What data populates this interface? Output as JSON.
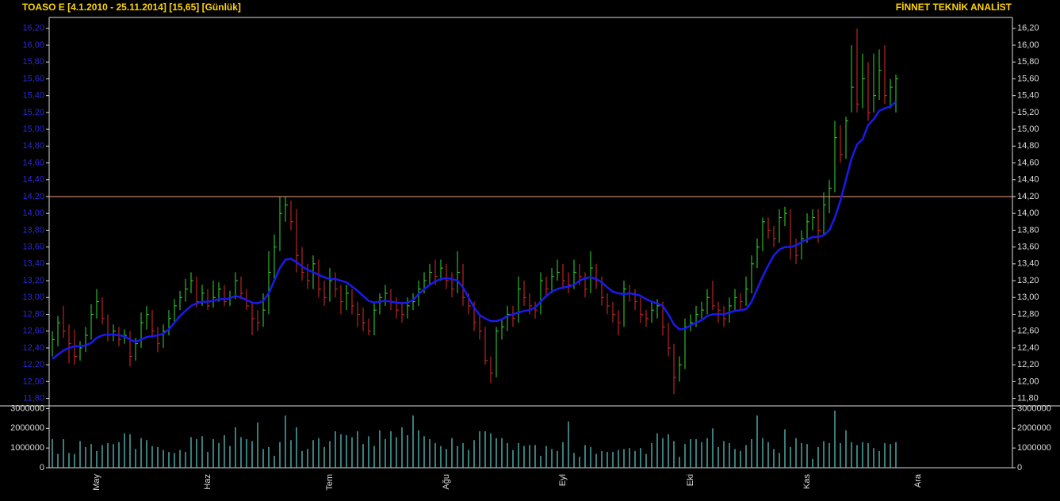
{
  "chart_data": [
    {
      "type": "hlc",
      "title": "TOASO E  [4.1.2010 - 25.11.2014]  [15,65]  [Günlük]",
      "brand": "FİNNET TEKNİK ANALİST",
      "up_color": "#33dd33",
      "down_color": "#dd2a2a",
      "hline": 14.2,
      "hline_color": "#f0a080",
      "ylim": [
        11.73,
        16.33
      ],
      "yticks": [
        {
          "value": 11.8,
          "label": "11,80"
        },
        {
          "value": 12,
          "label": "12,00"
        },
        {
          "value": 12.2,
          "label": "12,20"
        },
        {
          "value": 12.4,
          "label": "12,40"
        },
        {
          "value": 12.6,
          "label": "12,60"
        },
        {
          "value": 12.8,
          "label": "12,80"
        },
        {
          "value": 13,
          "label": "13,00"
        },
        {
          "value": 13.2,
          "label": "13,20"
        },
        {
          "value": 13.4,
          "label": "13,40"
        },
        {
          "value": 13.6,
          "label": "13,60"
        },
        {
          "value": 13.8,
          "label": "13,80"
        },
        {
          "value": 14,
          "label": "14,00"
        },
        {
          "value": 14.2,
          "label": "14,20"
        },
        {
          "value": 14.4,
          "label": "14,40"
        },
        {
          "value": 14.6,
          "label": "14,60"
        },
        {
          "value": 14.8,
          "label": "14,80"
        },
        {
          "value": 15,
          "label": "15,00"
        },
        {
          "value": 15.2,
          "label": "15,20"
        },
        {
          "value": 15.4,
          "label": "15,40"
        },
        {
          "value": 15.6,
          "label": "15,60"
        },
        {
          "value": 15.8,
          "label": "15,80"
        },
        {
          "value": 16,
          "label": "16,00"
        },
        {
          "value": 16.2,
          "label": "16,20"
        }
      ],
      "categories": [
        null,
        null,
        null,
        null,
        null,
        null,
        null,
        null,
        "May",
        null,
        null,
        null,
        null,
        null,
        null,
        null,
        null,
        null,
        null,
        null,
        null,
        null,
        null,
        null,
        null,
        null,
        null,
        null,
        "Haz",
        null,
        null,
        null,
        null,
        null,
        null,
        null,
        null,
        null,
        null,
        null,
        null,
        null,
        null,
        null,
        null,
        null,
        null,
        null,
        null,
        null,
        "Tem",
        null,
        null,
        null,
        null,
        null,
        null,
        null,
        null,
        null,
        null,
        null,
        null,
        null,
        null,
        null,
        null,
        null,
        null,
        null,
        null,
        "Ağu",
        null,
        null,
        null,
        null,
        null,
        null,
        null,
        null,
        null,
        null,
        null,
        null,
        null,
        null,
        null,
        null,
        null,
        null,
        null,
        null,
        "Eyl",
        null,
        null,
        null,
        null,
        null,
        null,
        null,
        null,
        null,
        null,
        null,
        null,
        null,
        null,
        null,
        null,
        null,
        null,
        null,
        null,
        null,
        null,
        "Eki",
        null,
        null,
        null,
        null,
        null,
        null,
        null,
        null,
        null,
        null,
        null,
        null,
        null,
        null,
        null,
        null,
        null,
        null,
        null,
        null,
        "Kas",
        null,
        null,
        null,
        null,
        null,
        null,
        null,
        null,
        null,
        null,
        null,
        null,
        null,
        null,
        null,
        null,
        null,
        null,
        null,
        "Ara"
      ],
      "high": [
        12.6,
        12.78,
        12.9,
        12.68,
        12.62,
        12.48,
        12.65,
        12.92,
        13.1,
        13,
        12.8,
        12.68,
        12.65,
        12.62,
        12.6,
        12.52,
        12.82,
        12.9,
        12.85,
        12.65,
        12.68,
        12.85,
        12.98,
        13.08,
        13.22,
        13.3,
        13.25,
        13.15,
        13.1,
        13.2,
        13.18,
        13.15,
        13.08,
        13.3,
        13.25,
        13.1,
        12.95,
        12.85,
        13.05,
        13.55,
        13.75,
        14.2,
        14.2,
        14.15,
        14.05,
        13.6,
        13.4,
        13.5,
        13.45,
        13.2,
        13.35,
        13.3,
        13.15,
        13.15,
        13.1,
        12.95,
        12.88,
        12.75,
        12.95,
        13.05,
        13.15,
        13.1,
        13,
        12.95,
        13,
        13.05,
        13.2,
        13.3,
        13.4,
        13.45,
        13.45,
        13.4,
        13.3,
        13.55,
        13.4,
        13.05,
        12.95,
        12.8,
        12.65,
        12.3,
        12.65,
        12.75,
        12.9,
        12.9,
        13.25,
        13.2,
        13.05,
        12.95,
        13.3,
        13.25,
        13.35,
        13.45,
        13.4,
        13.3,
        13.45,
        13.4,
        13.3,
        13.55,
        13.4,
        13.25,
        13.05,
        12.95,
        12.85,
        13.2,
        13.15,
        13.1,
        13,
        12.85,
        12.95,
        12.98,
        12.95,
        12.7,
        12.45,
        12.3,
        12.75,
        12.8,
        12.9,
        12.95,
        13.1,
        13.2,
        12.95,
        12.9,
        13,
        13.1,
        13.05,
        13.25,
        13.5,
        13.7,
        13.95,
        13.95,
        13.85,
        14.05,
        14.08,
        14.05,
        13.7,
        13.8,
        14,
        14.05,
        14.05,
        14.25,
        14.4,
        15.1,
        15.05,
        15.15,
        16,
        16.2,
        15.9,
        15.8,
        15.9,
        15.95,
        16,
        15.6,
        15.65,
        null,
        null,
        null,
        null
      ],
      "low": [
        12.3,
        12.42,
        12.52,
        12.22,
        12.2,
        12.25,
        12.35,
        12.5,
        12.75,
        12.68,
        12.48,
        12.48,
        12.42,
        12.45,
        12.18,
        12.25,
        12.4,
        12.62,
        12.52,
        12.35,
        12.4,
        12.55,
        12.7,
        12.85,
        12.95,
        13.05,
        12.88,
        12.9,
        12.85,
        12.88,
        12.95,
        12.9,
        12.9,
        12.98,
        12.98,
        12.85,
        12.55,
        12.6,
        12.65,
        12.8,
        13.2,
        13.55,
        13.9,
        13.8,
        13.3,
        13.2,
        13.1,
        13.1,
        13,
        12.9,
        12.95,
        13,
        12.8,
        12.85,
        12.8,
        12.65,
        12.6,
        12.55,
        12.55,
        12.8,
        12.9,
        12.85,
        12.75,
        12.7,
        12.75,
        12.85,
        12.9,
        13.05,
        13.15,
        13.15,
        13.2,
        13.1,
        13,
        13.05,
        12.9,
        12.8,
        12.6,
        12.5,
        12.2,
        11.98,
        12.05,
        12.5,
        12.6,
        12.65,
        12.7,
        12.9,
        12.8,
        12.75,
        12.8,
        13,
        13.05,
        13.2,
        13.1,
        13.05,
        13.1,
        13.15,
        13,
        13.05,
        13.1,
        12.9,
        12.8,
        12.7,
        12.55,
        12.65,
        12.95,
        12.85,
        12.7,
        12.65,
        12.7,
        12.75,
        12.55,
        12.3,
        11.85,
        12,
        12.15,
        12.6,
        12.65,
        12.75,
        12.8,
        12.85,
        12.7,
        12.65,
        12.7,
        12.85,
        12.85,
        12.9,
        13.05,
        13.35,
        13.55,
        13.7,
        13.6,
        13.65,
        13.85,
        13.45,
        13.4,
        13.45,
        13.65,
        13.8,
        13.65,
        13.75,
        14,
        14.25,
        14.6,
        14.65,
        15.2,
        15.2,
        15.25,
        15.1,
        15.2,
        15.35,
        15.3,
        15.25,
        15.2,
        null,
        null,
        null,
        null
      ],
      "close": [
        12.5,
        12.7,
        12.6,
        12.45,
        12.3,
        12.4,
        12.55,
        12.8,
        12.95,
        12.75,
        12.55,
        12.6,
        12.5,
        12.55,
        12.3,
        12.45,
        12.7,
        12.8,
        12.6,
        12.45,
        12.6,
        12.75,
        12.9,
        13,
        13.1,
        13.2,
        12.95,
        13.05,
        12.9,
        13,
        13.1,
        12.95,
        13,
        13.2,
        13.05,
        12.9,
        12.75,
        12.7,
        12.85,
        13.3,
        13.6,
        14,
        14.1,
        13.9,
        13.5,
        13.3,
        13.2,
        13.4,
        13.1,
        13,
        13.2,
        13.1,
        12.95,
        13.05,
        12.9,
        12.8,
        12.7,
        12.6,
        12.85,
        13,
        13.05,
        12.95,
        12.85,
        12.8,
        12.9,
        12.95,
        13.1,
        13.2,
        13.3,
        13.25,
        13.35,
        13.2,
        13.1,
        13.3,
        13,
        12.9,
        12.7,
        12.6,
        12.25,
        12.1,
        12.6,
        12.65,
        12.8,
        12.75,
        13.1,
        13,
        12.9,
        12.85,
        13.2,
        13.1,
        13.25,
        13.3,
        13.2,
        13.15,
        13.3,
        13.25,
        13.1,
        13.35,
        13.2,
        13,
        12.9,
        12.8,
        12.7,
        13.1,
        13.05,
        12.95,
        12.8,
        12.75,
        12.85,
        12.9,
        12.65,
        12.4,
        12.05,
        12.2,
        12.65,
        12.7,
        12.8,
        12.85,
        13,
        12.9,
        12.85,
        12.75,
        12.9,
        13,
        12.95,
        13.1,
        13.4,
        13.6,
        13.9,
        13.8,
        13.7,
        13.95,
        14,
        13.6,
        13.5,
        13.7,
        13.9,
        13.95,
        13.8,
        14.1,
        14.3,
        14.9,
        14.7,
        15.1,
        15.5,
        15.3,
        15.6,
        15.2,
        15.4,
        15.7,
        15.4,
        15.5,
        15.6,
        null,
        null,
        null,
        null
      ],
      "ma": {
        "color": "#1a1aee",
        "values": [
          12.27,
          12.32,
          12.37,
          12.4,
          12.42,
          12.42,
          12.43,
          12.46,
          12.52,
          12.55,
          12.56,
          12.56,
          12.55,
          12.54,
          12.5,
          12.47,
          12.5,
          12.53,
          12.54,
          12.55,
          12.57,
          12.62,
          12.7,
          12.78,
          12.84,
          12.9,
          12.93,
          12.95,
          12.95,
          12.96,
          12.98,
          12.98,
          12.99,
          13.02,
          13,
          12.97,
          12.94,
          12.93,
          12.96,
          13.05,
          13.2,
          13.35,
          13.45,
          13.46,
          13.42,
          13.37,
          13.33,
          13.3,
          13.27,
          13.24,
          13.22,
          13.22,
          13.2,
          13.18,
          13.13,
          13.08,
          13.02,
          12.96,
          12.94,
          12.95,
          12.96,
          12.95,
          12.94,
          12.93,
          12.94,
          12.97,
          13.04,
          13.1,
          13.15,
          13.19,
          13.22,
          13.23,
          13.22,
          13.2,
          13.12,
          13,
          12.88,
          12.79,
          12.75,
          12.72,
          12.72,
          12.74,
          12.78,
          12.8,
          12.82,
          12.84,
          12.85,
          12.88,
          12.95,
          13.02,
          13.07,
          13.1,
          13.12,
          13.13,
          13.15,
          13.2,
          13.23,
          13.24,
          13.22,
          13.18,
          13.12,
          13.07,
          13.05,
          13.04,
          13.05,
          13.04,
          13.02,
          12.98,
          12.95,
          12.93,
          12.9,
          12.8,
          12.68,
          12.62,
          12.63,
          12.67,
          12.7,
          12.73,
          12.78,
          12.8,
          12.8,
          12.8,
          12.82,
          12.84,
          12.85,
          12.86,
          12.95,
          13.1,
          13.25,
          13.38,
          13.5,
          13.57,
          13.6,
          13.6,
          13.62,
          13.66,
          13.69,
          13.72,
          13.72,
          13.74,
          13.8,
          13.95,
          14.15,
          14.4,
          14.65,
          14.82,
          14.88,
          15.05,
          15.12,
          15.22,
          15.25,
          15.27,
          15.33,
          null,
          null,
          null,
          null
        ]
      }
    },
    {
      "type": "bar",
      "color": "#5fd0d0",
      "ylim": [
        0,
        3100000
      ],
      "yticks": [
        0,
        1000000,
        2000000,
        3000000
      ],
      "values": [
        1450000,
        700000,
        1450000,
        750000,
        700000,
        1350000,
        1050000,
        1200000,
        850000,
        1150000,
        1250000,
        1200000,
        1300000,
        1750000,
        1700000,
        950000,
        1500000,
        1400000,
        1100000,
        1050000,
        900000,
        800000,
        750000,
        900000,
        800000,
        1550000,
        1450000,
        1600000,
        800000,
        1450000,
        1250000,
        1650000,
        1100000,
        2050000,
        1550000,
        1450000,
        1350000,
        2300000,
        950000,
        1050000,
        600000,
        1300000,
        2650000,
        1400000,
        2050000,
        850000,
        950000,
        1400000,
        1500000,
        1050000,
        1350000,
        1850000,
        1700000,
        1650000,
        1550000,
        1850000,
        1200000,
        1600000,
        1100000,
        1900000,
        1450000,
        1850000,
        1550000,
        2050000,
        1650000,
        2650000,
        1900000,
        1600000,
        1450000,
        1250000,
        1100000,
        950000,
        1500000,
        1100000,
        1250000,
        900000,
        1400000,
        1850000,
        1850000,
        1750000,
        1500000,
        1500000,
        1250000,
        900000,
        1250000,
        1100000,
        1150000,
        1150000,
        600000,
        1100000,
        950000,
        850000,
        1300000,
        2350000,
        750000,
        550000,
        1150000,
        1050000,
        700000,
        850000,
        800000,
        800000,
        900000,
        950000,
        1000000,
        850000,
        1000000,
        700000,
        1250000,
        1750000,
        1500000,
        1700000,
        1350000,
        550000,
        1200000,
        1450000,
        1450000,
        1300000,
        1500000,
        2000000,
        1050000,
        1350000,
        1250000,
        950000,
        850000,
        1150000,
        1450000,
        2650000,
        1500000,
        1300000,
        950000,
        750000,
        1950000,
        1050000,
        1500000,
        1250000,
        1200000,
        450000,
        1050000,
        1350000,
        1250000,
        2900000,
        1250000,
        1900000,
        1300000,
        1150000,
        1300000,
        1250000,
        1000000,
        850000,
        1250000,
        1200000,
        1300000,
        null,
        null,
        null,
        null
      ]
    }
  ]
}
